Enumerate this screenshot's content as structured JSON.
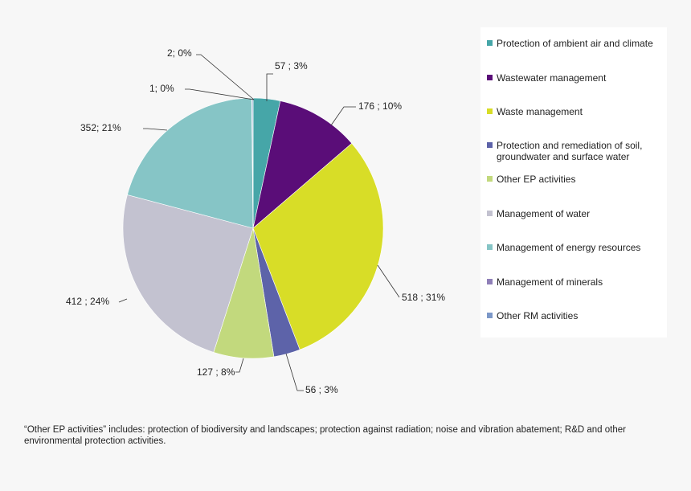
{
  "chart_data": {
    "type": "pie",
    "slices": [
      {
        "name": "Protection of ambient air and climate",
        "value": 57,
        "label": "57   ; 3%",
        "color": "#46a6a8"
      },
      {
        "name": "Wastewater management",
        "value": 176,
        "label": "176   ; 10%",
        "color": "#5a0d78"
      },
      {
        "name": "Waste management",
        "value": 518,
        "label": "518   ; 31%",
        "color": "#d8dd27"
      },
      {
        "name": "Protection and remediation of soil, groundwater and surface water",
        "value": 56,
        "label": "56   ; 3%",
        "color": "#5d63a9"
      },
      {
        "name": "Other EP activities",
        "value": 127,
        "label": "127   ; 8%",
        "color": "#c2d97d"
      },
      {
        "name": "Management of water",
        "value": 412,
        "label": "412   ; 24%",
        "color": "#c3c2d0"
      },
      {
        "name": "Management of energy resources",
        "value": 352,
        "label": "352; 21%",
        "color": "#86c5c6"
      },
      {
        "name": "Management of minerals",
        "value": 1,
        "label": "1; 0%",
        "color": "#8f7fb8"
      },
      {
        "name": "Other RM activities",
        "value": 2,
        "label": "2; 0%",
        "color": "#7c98c8"
      }
    ]
  },
  "legend": {
    "items": [
      {
        "label": "Protection of ambient air and climate",
        "color": "#46a6a8"
      },
      {
        "label": "Wastewater management",
        "color": "#5a0d78"
      },
      {
        "label": "Waste management",
        "color": "#d8dd27"
      },
      {
        "label": "Protection and remediation of soil, groundwater and surface water",
        "color": "#5d63a9"
      },
      {
        "label": "Other EP activities",
        "color": "#c2d97d"
      },
      {
        "label": "Management of water",
        "color": "#c3c2d0"
      },
      {
        "label": "Management of energy resources",
        "color": "#86c5c6"
      },
      {
        "label": "Management of minerals",
        "color": "#8f7fb8"
      },
      {
        "label": "Other RM activities",
        "color": "#7c98c8"
      }
    ]
  },
  "footnote": "“Other EP activities” includes: protection of biodiversity and landscapes; protection against radiation; noise and vibration abatement; R&D and other environmental  protection  activities."
}
